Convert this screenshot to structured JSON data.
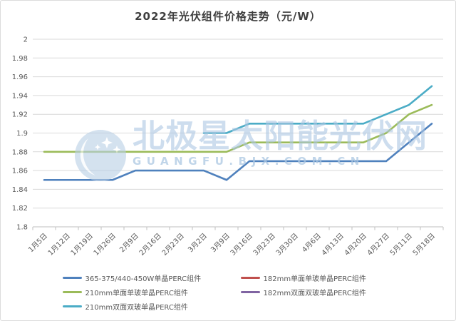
{
  "title": "2022年光伏组件价格走势（元/W）",
  "watermark": {
    "brand": "北极星太阳能光伏网",
    "url": "GUANGFU.BJX.COM.CN",
    "logo": "crescent-moon-stars-icon",
    "color": "#abc7e2"
  },
  "chart_data": {
    "type": "line",
    "title": "2022年光伏组件价格走势（元/W）",
    "xlabel": "",
    "ylabel": "",
    "ylim": [
      1.8,
      2.0
    ],
    "ytick_step": 0.02,
    "ytick_labels": [
      "2",
      "1.98",
      "1.96",
      "1.94",
      "1.92",
      "1.9",
      "1.88",
      "1.86",
      "1.84",
      "1.82",
      "1.8"
    ],
    "grid": true,
    "legend_position": "bottom",
    "categories": [
      "1月5日",
      "1月12日",
      "1月19日",
      "1月26日",
      "2月9日",
      "2月16日",
      "2月23日",
      "3月2日",
      "3月9日",
      "3月16日",
      "3月23日",
      "3月30日",
      "4月6日",
      "4月13日",
      "4月20日",
      "4月27日",
      "5月11日",
      "5月18日"
    ],
    "series": [
      {
        "name": "365-375/440-450W单晶PERC组件",
        "color": "#4F81BD",
        "visible_in_plot": true,
        "values": [
          1.85,
          1.85,
          1.85,
          1.85,
          1.86,
          1.86,
          1.86,
          1.86,
          1.85,
          1.87,
          1.87,
          1.87,
          1.87,
          1.87,
          1.87,
          1.87,
          1.89,
          1.91
        ]
      },
      {
        "name": "182mm单面单玻单晶PERC组件",
        "color": "#C0504D",
        "visible_in_plot": false,
        "values": []
      },
      {
        "name": "210mm单面单玻单晶PERC组件",
        "color": "#9BBB59",
        "visible_in_plot": true,
        "values": [
          1.88,
          1.88,
          1.88,
          1.88,
          1.88,
          1.88,
          1.88,
          1.88,
          1.88,
          1.89,
          1.89,
          1.89,
          1.89,
          1.89,
          1.89,
          1.9,
          1.92,
          1.93
        ]
      },
      {
        "name": "182mm双面双玻单晶PERC组件",
        "color": "#8064A2",
        "visible_in_plot": false,
        "values": []
      },
      {
        "name": "210mm双面双玻单晶PERC组件",
        "color": "#4BACC6",
        "visible_in_plot": true,
        "values": [
          null,
          null,
          null,
          null,
          null,
          null,
          null,
          1.9,
          1.9,
          1.91,
          1.91,
          1.91,
          1.91,
          1.91,
          1.91,
          1.92,
          1.93,
          1.95
        ]
      }
    ]
  }
}
